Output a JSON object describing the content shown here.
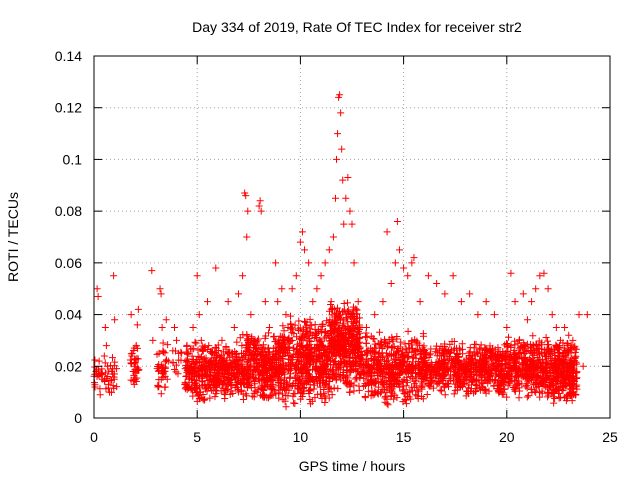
{
  "chart_data": {
    "type": "scatter",
    "title": "Day 334 of 2019, Rate Of TEC Index for receiver str2",
    "xlabel": "GPS time / hours",
    "ylabel": "ROTI / TECUs",
    "xlim": [
      0,
      25
    ],
    "ylim": [
      0,
      0.14
    ],
    "xticks": [
      0,
      5,
      10,
      15,
      20,
      25
    ],
    "yticks": [
      0,
      0.02,
      0.04,
      0.06,
      0.08,
      0.1,
      0.12,
      0.14
    ],
    "ytick_labels": [
      "0",
      "0.02",
      "0.04",
      "0.06",
      "0.08",
      "0.1",
      "0.12",
      "0.14"
    ],
    "grid": true,
    "marker": "+",
    "color": "#ff0000",
    "series": [
      {
        "name": "ROTI",
        "points": [
          [
            0.05,
            0.012
          ],
          [
            0.1,
            0.018
          ],
          [
            0.15,
            0.05
          ],
          [
            0.2,
            0.047
          ],
          [
            0.25,
            0.022
          ],
          [
            0.3,
            0.009
          ],
          [
            0.4,
            0.015
          ],
          [
            0.5,
            0.024
          ],
          [
            0.55,
            0.035
          ],
          [
            0.6,
            0.028
          ],
          [
            0.65,
            0.02
          ],
          [
            0.7,
            0.013
          ],
          [
            0.75,
            0.01
          ],
          [
            0.9,
            0.017
          ],
          [
            0.95,
            0.055
          ],
          [
            1.0,
            0.038
          ],
          [
            1.8,
            0.04
          ],
          [
            1.85,
            0.025
          ],
          [
            1.9,
            0.018
          ],
          [
            1.95,
            0.013
          ],
          [
            2.0,
            0.02
          ],
          [
            2.05,
            0.028
          ],
          [
            2.1,
            0.036
          ],
          [
            2.15,
            0.042
          ],
          [
            2.8,
            0.057
          ],
          [
            2.85,
            0.03
          ],
          [
            3.1,
            0.012
          ],
          [
            3.15,
            0.025
          ],
          [
            3.2,
            0.05
          ],
          [
            3.25,
            0.048
          ],
          [
            3.3,
            0.035
          ],
          [
            3.35,
            0.029
          ],
          [
            3.4,
            0.018
          ],
          [
            3.45,
            0.012
          ],
          [
            3.5,
            0.038
          ],
          [
            3.55,
            0.015
          ],
          [
            3.6,
            0.022
          ],
          [
            3.9,
            0.035
          ],
          [
            4.0,
            0.03
          ],
          [
            4.1,
            0.025
          ],
          [
            4.5,
            0.012
          ],
          [
            4.6,
            0.015
          ],
          [
            4.7,
            0.02
          ],
          [
            4.8,
            0.035
          ],
          [
            4.9,
            0.018
          ],
          [
            5.0,
            0.055
          ],
          [
            5.1,
            0.04
          ],
          [
            5.2,
            0.03
          ],
          [
            5.3,
            0.02
          ],
          [
            5.5,
            0.045
          ],
          [
            5.7,
            0.025
          ],
          [
            5.9,
            0.058
          ],
          [
            6.2,
            0.03
          ],
          [
            6.5,
            0.045
          ],
          [
            6.8,
            0.035
          ],
          [
            7.0,
            0.048
          ],
          [
            7.2,
            0.055
          ],
          [
            7.3,
            0.087
          ],
          [
            7.35,
            0.086
          ],
          [
            7.4,
            0.07
          ],
          [
            7.45,
            0.08
          ],
          [
            7.6,
            0.04
          ],
          [
            7.8,
            0.03
          ],
          [
            8.0,
            0.082
          ],
          [
            8.05,
            0.084
          ],
          [
            8.1,
            0.08
          ],
          [
            8.3,
            0.045
          ],
          [
            8.5,
            0.035
          ],
          [
            8.8,
            0.06
          ],
          [
            8.9,
            0.045
          ],
          [
            9.1,
            0.05
          ],
          [
            9.3,
            0.04
          ],
          [
            9.6,
            0.05
          ],
          [
            9.8,
            0.055
          ],
          [
            10.0,
            0.068
          ],
          [
            10.1,
            0.072
          ],
          [
            10.2,
            0.065
          ],
          [
            10.4,
            0.06
          ],
          [
            10.6,
            0.045
          ],
          [
            10.8,
            0.05
          ],
          [
            11.0,
            0.055
          ],
          [
            11.2,
            0.06
          ],
          [
            11.4,
            0.065
          ],
          [
            11.6,
            0.07
          ],
          [
            11.7,
            0.085
          ],
          [
            11.75,
            0.1
          ],
          [
            11.8,
            0.11
          ],
          [
            11.85,
            0.124
          ],
          [
            11.9,
            0.125
          ],
          [
            11.95,
            0.118
          ],
          [
            12.0,
            0.104
          ],
          [
            12.05,
            0.092
          ],
          [
            12.1,
            0.075
          ],
          [
            12.2,
            0.085
          ],
          [
            12.3,
            0.093
          ],
          [
            12.4,
            0.08
          ],
          [
            12.5,
            0.075
          ],
          [
            12.6,
            0.06
          ],
          [
            12.8,
            0.045
          ],
          [
            13.2,
            0.035
          ],
          [
            13.6,
            0.04
          ],
          [
            14.0,
            0.045
          ],
          [
            14.2,
            0.072
          ],
          [
            14.4,
            0.052
          ],
          [
            14.6,
            0.06
          ],
          [
            14.7,
            0.076
          ],
          [
            14.8,
            0.065
          ],
          [
            15.0,
            0.058
          ],
          [
            15.2,
            0.055
          ],
          [
            15.4,
            0.06
          ],
          [
            15.5,
            0.062
          ],
          [
            15.8,
            0.045
          ],
          [
            16.2,
            0.055
          ],
          [
            16.6,
            0.052
          ],
          [
            17.0,
            0.048
          ],
          [
            17.4,
            0.055
          ],
          [
            17.8,
            0.045
          ],
          [
            18.2,
            0.048
          ],
          [
            18.6,
            0.04
          ],
          [
            19.0,
            0.045
          ],
          [
            19.4,
            0.04
          ],
          [
            20.0,
            0.035
          ],
          [
            20.2,
            0.056
          ],
          [
            20.4,
            0.045
          ],
          [
            20.6,
            0.03
          ],
          [
            20.8,
            0.048
          ],
          [
            21.0,
            0.038
          ],
          [
            21.2,
            0.045
          ],
          [
            21.4,
            0.05
          ],
          [
            21.6,
            0.055
          ],
          [
            21.8,
            0.056
          ],
          [
            22.0,
            0.05
          ],
          [
            22.2,
            0.04
          ],
          [
            22.4,
            0.035
          ],
          [
            22.6,
            0.03
          ],
          [
            22.8,
            0.035
          ],
          [
            23.0,
            0.032
          ],
          [
            23.2,
            0.03
          ],
          [
            23.5,
            0.04
          ],
          [
            23.7,
            0.02
          ],
          [
            23.9,
            0.04
          ]
        ]
      }
    ],
    "bulk_seed": 334,
    "bulk_segments": [
      {
        "x0": 0.0,
        "x1": 1.1,
        "lo": 0.007,
        "hi": 0.026,
        "n": 45
      },
      {
        "x0": 1.75,
        "x1": 2.2,
        "lo": 0.01,
        "hi": 0.03,
        "n": 30
      },
      {
        "x0": 3.05,
        "x1": 3.65,
        "lo": 0.008,
        "hi": 0.03,
        "n": 35
      },
      {
        "x0": 3.8,
        "x1": 4.25,
        "lo": 0.015,
        "hi": 0.03,
        "n": 12
      },
      {
        "x0": 4.4,
        "x1": 7.0,
        "lo": 0.006,
        "hi": 0.03,
        "n": 420
      },
      {
        "x0": 7.0,
        "x1": 9.0,
        "lo": 0.006,
        "hi": 0.034,
        "n": 380
      },
      {
        "x0": 9.0,
        "x1": 11.4,
        "lo": 0.004,
        "hi": 0.04,
        "n": 500
      },
      {
        "x0": 11.4,
        "x1": 12.9,
        "lo": 0.008,
        "hi": 0.046,
        "n": 420
      },
      {
        "x0": 12.9,
        "x1": 16.0,
        "lo": 0.004,
        "hi": 0.034,
        "n": 500
      },
      {
        "x0": 16.0,
        "x1": 19.5,
        "lo": 0.008,
        "hi": 0.03,
        "n": 520
      },
      {
        "x0": 19.5,
        "x1": 22.0,
        "lo": 0.007,
        "hi": 0.032,
        "n": 430
      },
      {
        "x0": 22.0,
        "x1": 23.4,
        "lo": 0.005,
        "hi": 0.03,
        "n": 300
      }
    ]
  }
}
